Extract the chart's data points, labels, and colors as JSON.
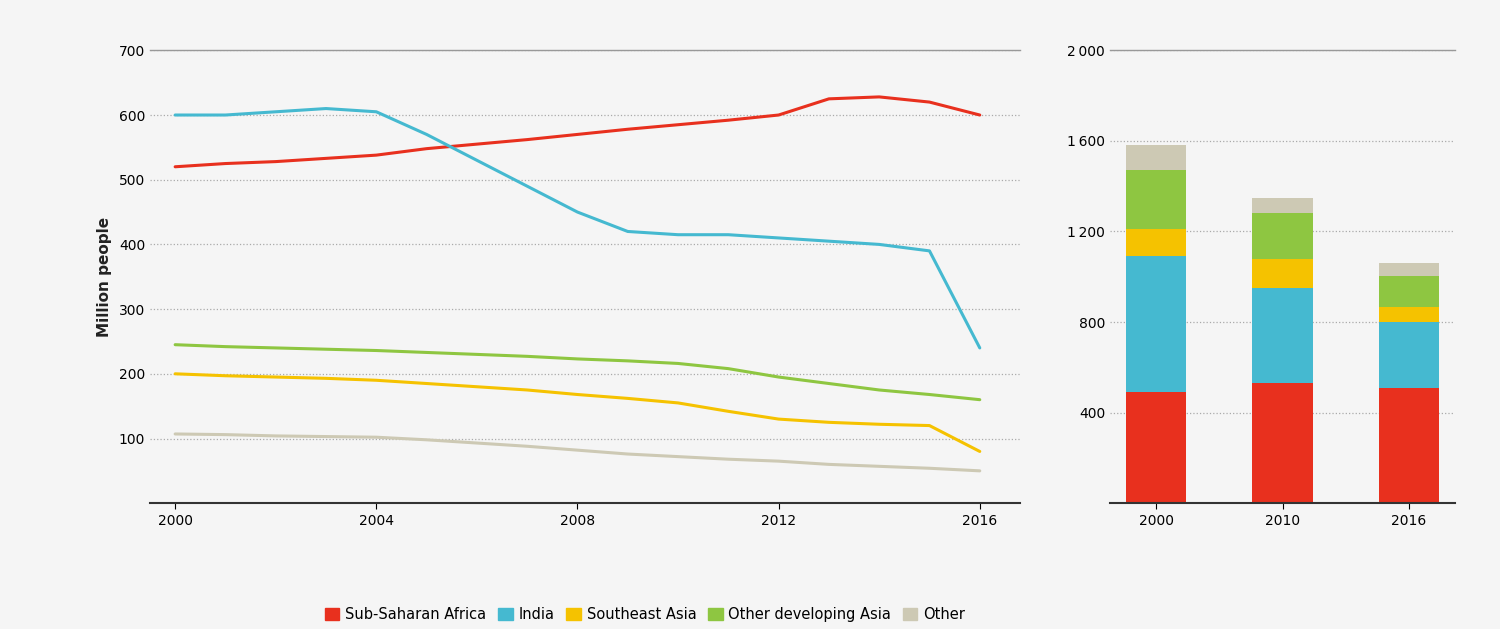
{
  "line_years": [
    2000,
    2001,
    2002,
    2003,
    2004,
    2005,
    2006,
    2007,
    2008,
    2009,
    2010,
    2011,
    2012,
    2013,
    2014,
    2015,
    2016
  ],
  "sub_saharan_africa": [
    520,
    525,
    528,
    533,
    538,
    548,
    555,
    562,
    570,
    578,
    585,
    592,
    600,
    625,
    628,
    620,
    600
  ],
  "india": [
    600,
    600,
    605,
    610,
    605,
    570,
    530,
    490,
    450,
    420,
    415,
    415,
    410,
    405,
    400,
    390,
    240
  ],
  "southeast_asia": [
    200,
    197,
    195,
    193,
    190,
    185,
    180,
    175,
    168,
    162,
    155,
    142,
    130,
    125,
    122,
    120,
    80
  ],
  "other_developing_asia": [
    245,
    242,
    240,
    238,
    236,
    233,
    230,
    227,
    223,
    220,
    216,
    208,
    195,
    185,
    175,
    168,
    160
  ],
  "other": [
    107,
    106,
    104,
    103,
    102,
    98,
    93,
    88,
    82,
    76,
    72,
    68,
    65,
    60,
    57,
    54,
    50
  ],
  "bar_years": [
    "2000",
    "2010",
    "2016"
  ],
  "bar_sub_saharan_africa": [
    490,
    530,
    510
  ],
  "bar_india": [
    600,
    420,
    290
  ],
  "bar_southeast_asia": [
    120,
    130,
    65
  ],
  "bar_other_developing_asia": [
    260,
    200,
    140
  ],
  "bar_other": [
    110,
    70,
    55
  ],
  "colors": {
    "sub_saharan_africa": "#e8301e",
    "india": "#45b9d0",
    "southeast_asia": "#f5c200",
    "other_developing_asia": "#8ec641",
    "other": "#cdc9b4"
  },
  "line_ylim": [
    0,
    700
  ],
  "line_yticks": [
    100,
    200,
    300,
    400,
    500,
    600,
    700
  ],
  "bar_ylim": [
    0,
    2000
  ],
  "bar_yticks": [
    400,
    800,
    1200,
    1600,
    2000
  ],
  "ylabel": "Million people",
  "bg_color": "#f5f5f5",
  "legend_labels": [
    "Sub-Saharan Africa",
    "India",
    "Southeast Asia",
    "Other developing Asia",
    "Other"
  ]
}
